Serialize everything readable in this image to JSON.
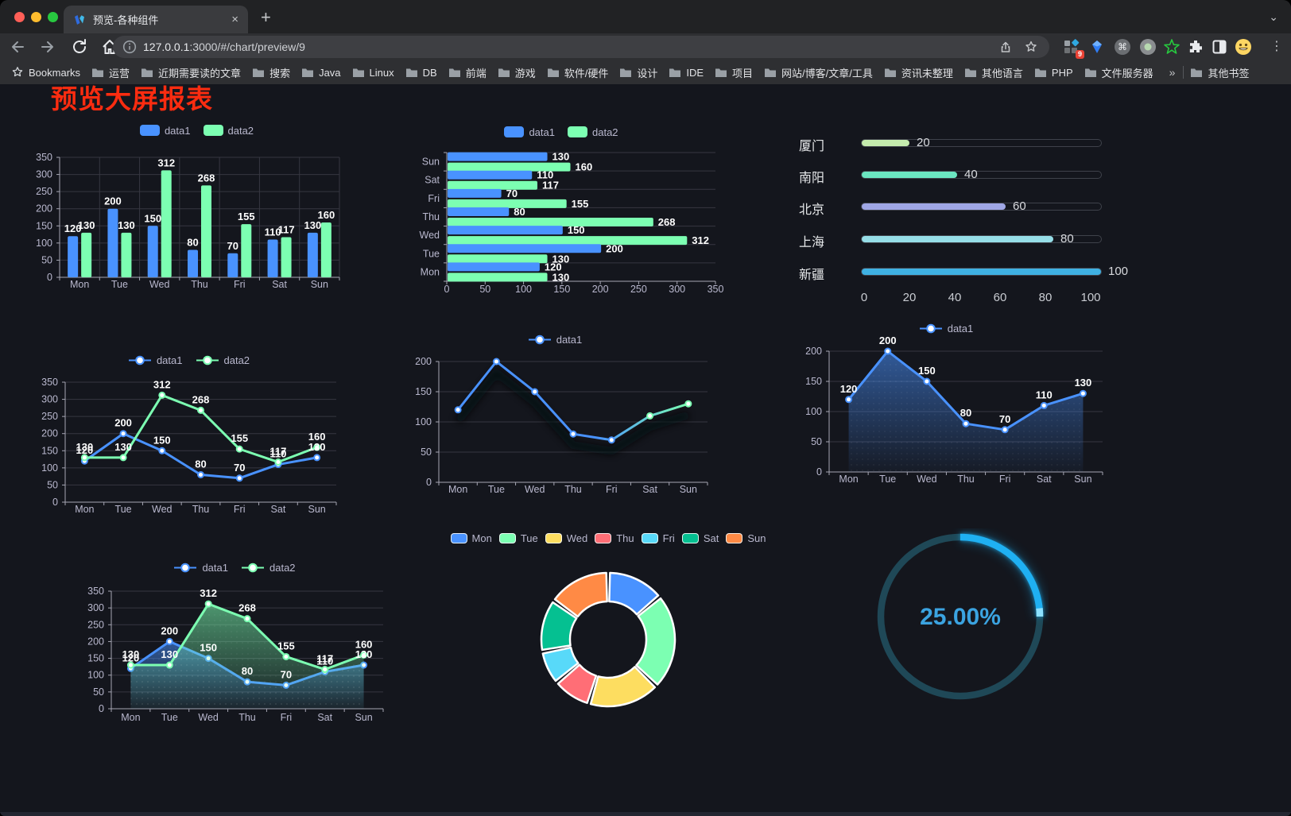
{
  "browser": {
    "tab": {
      "title": "预览-各种组件"
    },
    "icons": {
      "close": "×",
      "new_tab": "+",
      "menu": "⋮",
      "chevron": "⌄",
      "overflow": "»"
    },
    "url": {
      "host": "127.0.0.1",
      "rest": ":3000/#/chart/preview/9"
    },
    "extension_badge": "9",
    "bookmarks": {
      "label": "Bookmarks",
      "folders": [
        "运营",
        "近期需要读的文章",
        "搜索",
        "Java",
        "Linux",
        "DB",
        "前端",
        "游戏",
        "软件/硬件",
        "设计",
        "IDE",
        "项目",
        "网站/博客/文章/工具",
        "资讯未整理",
        "其他语言",
        "PHP",
        "文件服务器"
      ],
      "other": "其他书签"
    }
  },
  "page": {
    "title": "预览大屏报表",
    "title_color": "#fb2c10"
  },
  "palette": {
    "blue": "#4992ff",
    "green": "#7cffb2",
    "yellow": "#fddd60",
    "red": "#ff6e76",
    "cyan": "#58d9f9",
    "teal": "#05c091",
    "orange": "#ff8a45",
    "axis_text": "#b9b8ce",
    "grid": "#363741",
    "axis_line": "#a6a6b4",
    "label": "#ffffff"
  },
  "chart_data": [
    {
      "id": "bar-grouped",
      "type": "bar",
      "categories": [
        "Mon",
        "Tue",
        "Wed",
        "Thu",
        "Fri",
        "Sat",
        "Sun"
      ],
      "legend": [
        "data1",
        "data2"
      ],
      "series": [
        {
          "name": "data1",
          "color": "#4992ff",
          "values": [
            120,
            200,
            150,
            80,
            70,
            110,
            130
          ]
        },
        {
          "name": "data2",
          "color": "#7cffb2",
          "values": [
            130,
            130,
            312,
            268,
            155,
            117,
            160
          ]
        }
      ],
      "ylim": [
        0,
        350
      ],
      "ytick_step": 50,
      "value_labels": true
    },
    {
      "id": "bar-horizontal",
      "type": "bar-horizontal",
      "categories_top_to_bottom": [
        "Sun",
        "Sat",
        "Fri",
        "Thu",
        "Wed",
        "Tue",
        "Mon"
      ],
      "legend": [
        "data1",
        "data2"
      ],
      "series": [
        {
          "name": "data1",
          "color": "#4992ff",
          "values_by_row": [
            130,
            110,
            70,
            80,
            150,
            200,
            120
          ]
        },
        {
          "name": "data2",
          "color": "#7cffb2",
          "values_by_row": [
            160,
            117,
            155,
            268,
            312,
            130,
            130
          ]
        }
      ],
      "xlim": [
        0,
        350
      ],
      "xtick_step": 50,
      "value_labels": true
    },
    {
      "id": "progress-bars",
      "type": "progress",
      "max": 100,
      "xticks": [
        0,
        20,
        40,
        60,
        80,
        100
      ],
      "items": [
        {
          "label": "厦门",
          "value": 20,
          "color": "#c4ebad"
        },
        {
          "label": "南阳",
          "value": 40,
          "color": "#6be6c1"
        },
        {
          "label": "北京",
          "value": 60,
          "color": "#a0a7e6"
        },
        {
          "label": "上海",
          "value": 80,
          "color": "#96dee8"
        },
        {
          "label": "新疆",
          "value": 100,
          "color": "#3fb1e3"
        }
      ]
    },
    {
      "id": "line-basic",
      "type": "line",
      "categories": [
        "Mon",
        "Tue",
        "Wed",
        "Thu",
        "Fri",
        "Sat",
        "Sun"
      ],
      "legend": [
        "data1",
        "data2"
      ],
      "series": [
        {
          "name": "data1",
          "color": "#4992ff",
          "values": [
            120,
            200,
            150,
            80,
            70,
            110,
            130
          ]
        },
        {
          "name": "data2",
          "color": "#7cffb2",
          "values": [
            130,
            130,
            312,
            268,
            155,
            117,
            160
          ]
        }
      ],
      "ylim": [
        0,
        350
      ],
      "ytick_step": 50,
      "value_labels": true
    },
    {
      "id": "line-gradient",
      "type": "line",
      "categories": [
        "Mon",
        "Tue",
        "Wed",
        "Thu",
        "Fri",
        "Sat",
        "Sun"
      ],
      "legend": [
        "data1"
      ],
      "series": [
        {
          "name": "data1",
          "gradient": [
            "#4992ff",
            "#7cffb2"
          ],
          "values": [
            120,
            200,
            150,
            80,
            70,
            110,
            130
          ]
        }
      ],
      "ylim": [
        0,
        200
      ],
      "ytick_step": 50,
      "value_labels": false,
      "shadow": true
    },
    {
      "id": "line-area",
      "type": "line",
      "categories": [
        "Mon",
        "Tue",
        "Wed",
        "Thu",
        "Fri",
        "Sat",
        "Sun"
      ],
      "legend": [
        "data1"
      ],
      "series": [
        {
          "name": "data1",
          "color": "#4992ff",
          "values": [
            120,
            200,
            150,
            80,
            70,
            110,
            130
          ],
          "area": true
        }
      ],
      "ylim": [
        0,
        200
      ],
      "ytick_step": 50,
      "value_labels": true
    },
    {
      "id": "line-area-double",
      "type": "line",
      "categories": [
        "Mon",
        "Tue",
        "Wed",
        "Thu",
        "Fri",
        "Sat",
        "Sun"
      ],
      "legend": [
        "data1",
        "data2"
      ],
      "series": [
        {
          "name": "data1",
          "color": "#4992ff",
          "values": [
            120,
            200,
            150,
            80,
            70,
            110,
            130
          ],
          "area": true
        },
        {
          "name": "data2",
          "color": "#7cffb2",
          "values": [
            130,
            130,
            312,
            268,
            155,
            117,
            160
          ],
          "area": true
        }
      ],
      "ylim": [
        0,
        350
      ],
      "ytick_step": 50,
      "value_labels": true
    },
    {
      "id": "donut",
      "type": "pie",
      "labels": [
        "Mon",
        "Tue",
        "Wed",
        "Thu",
        "Fri",
        "Sat",
        "Sun"
      ],
      "values": [
        120,
        200,
        150,
        80,
        70,
        110,
        130
      ],
      "colors": [
        "#4992ff",
        "#7cffb2",
        "#fddd60",
        "#ff6e76",
        "#58d9f9",
        "#05c091",
        "#ff8a45"
      ],
      "inner_radius_ratio": 0.57
    },
    {
      "id": "gauge",
      "type": "gauge",
      "value": 25,
      "display": "25.00%",
      "color": "#1fb0f2",
      "track_color": "#1f4857",
      "text_color": "#3ba3e0"
    }
  ]
}
